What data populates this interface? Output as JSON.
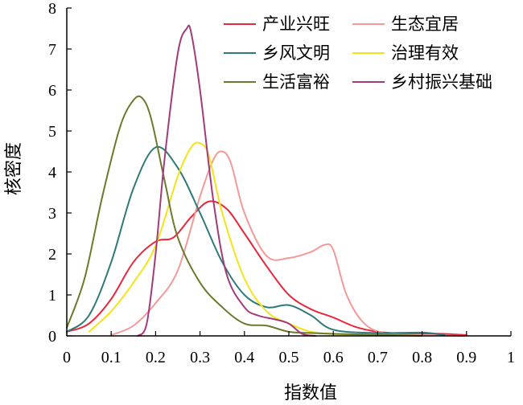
{
  "chart_data": {
    "type": "line",
    "title": "",
    "xlabel": "指数值",
    "ylabel": "核密度",
    "xlim": [
      0,
      1
    ],
    "ylim": [
      0,
      8
    ],
    "xticks": [
      "0",
      "0.1",
      "0.2",
      "0.3",
      "0.4",
      "0.5",
      "0.6",
      "0.7",
      "0.8",
      "0.9",
      "1"
    ],
    "yticks": [
      "0",
      "1",
      "2",
      "3",
      "4",
      "5",
      "6",
      "7",
      "8"
    ],
    "grid": false,
    "legend_position": "top-right",
    "series": [
      {
        "name": "产业兴旺",
        "color": "#e8263c",
        "x": [
          0,
          0.05,
          0.1,
          0.15,
          0.2,
          0.24,
          0.28,
          0.32,
          0.36,
          0.4,
          0.45,
          0.5,
          0.55,
          0.6,
          0.65,
          0.7,
          0.75,
          0.8,
          0.85,
          0.9
        ],
        "y": [
          0.1,
          0.3,
          0.9,
          1.8,
          2.3,
          2.4,
          2.9,
          3.28,
          3.1,
          2.5,
          1.7,
          1.0,
          0.65,
          0.45,
          0.22,
          0.1,
          0.06,
          0.06,
          0.05,
          0.02
        ]
      },
      {
        "name": "生态宜居",
        "color": "#f39a98",
        "x": [
          0.1,
          0.15,
          0.2,
          0.25,
          0.3,
          0.33,
          0.35,
          0.37,
          0.4,
          0.45,
          0.5,
          0.55,
          0.58,
          0.6,
          0.63,
          0.67,
          0.72,
          0.8,
          0.9
        ],
        "y": [
          0.02,
          0.25,
          0.8,
          1.6,
          3.4,
          4.3,
          4.5,
          4.2,
          3.0,
          1.95,
          1.9,
          2.05,
          2.22,
          2.1,
          1.0,
          0.3,
          0.06,
          0.02,
          0.0
        ]
      },
      {
        "name": "乡风文明",
        "color": "#2f7a78",
        "x": [
          0,
          0.05,
          0.1,
          0.15,
          0.2,
          0.25,
          0.3,
          0.35,
          0.4,
          0.45,
          0.5,
          0.55,
          0.6,
          0.7,
          0.8,
          0.85
        ],
        "y": [
          0.1,
          0.5,
          1.8,
          3.6,
          4.6,
          4.1,
          3.0,
          1.8,
          1.0,
          0.7,
          0.75,
          0.5,
          0.15,
          0.07,
          0.08,
          0.02
        ]
      },
      {
        "name": "治理有效",
        "color": "#f5e31a",
        "x": [
          0.05,
          0.1,
          0.15,
          0.2,
          0.25,
          0.28,
          0.3,
          0.32,
          0.35,
          0.4,
          0.45,
          0.5,
          0.55,
          0.6,
          0.7,
          0.8
        ],
        "y": [
          0.1,
          0.6,
          1.3,
          2.2,
          3.9,
          4.6,
          4.7,
          4.4,
          3.0,
          1.4,
          0.6,
          0.3,
          0.1,
          0.05,
          0.02,
          0.0
        ]
      },
      {
        "name": "生活富裕",
        "color": "#6b7a2a",
        "x": [
          0,
          0.04,
          0.08,
          0.12,
          0.15,
          0.17,
          0.19,
          0.22,
          0.25,
          0.3,
          0.35,
          0.4,
          0.45,
          0.5,
          0.55,
          0.6,
          0.7,
          0.8
        ],
        "y": [
          0.2,
          1.4,
          3.4,
          5.1,
          5.75,
          5.8,
          5.3,
          3.8,
          2.4,
          1.3,
          0.7,
          0.3,
          0.25,
          0.1,
          0.07,
          0.05,
          0.03,
          0.0
        ]
      },
      {
        "name": "乡村振兴基础",
        "color": "#a33a7a",
        "x": [
          0.16,
          0.18,
          0.2,
          0.22,
          0.25,
          0.27,
          0.28,
          0.3,
          0.33,
          0.36,
          0.4,
          0.43,
          0.47,
          0.5,
          0.53,
          0.56
        ],
        "y": [
          0.0,
          0.3,
          2.0,
          4.3,
          6.9,
          7.5,
          7.4,
          6.0,
          3.3,
          1.5,
          0.7,
          0.5,
          0.4,
          0.3,
          0.05,
          0.0
        ]
      }
    ]
  }
}
